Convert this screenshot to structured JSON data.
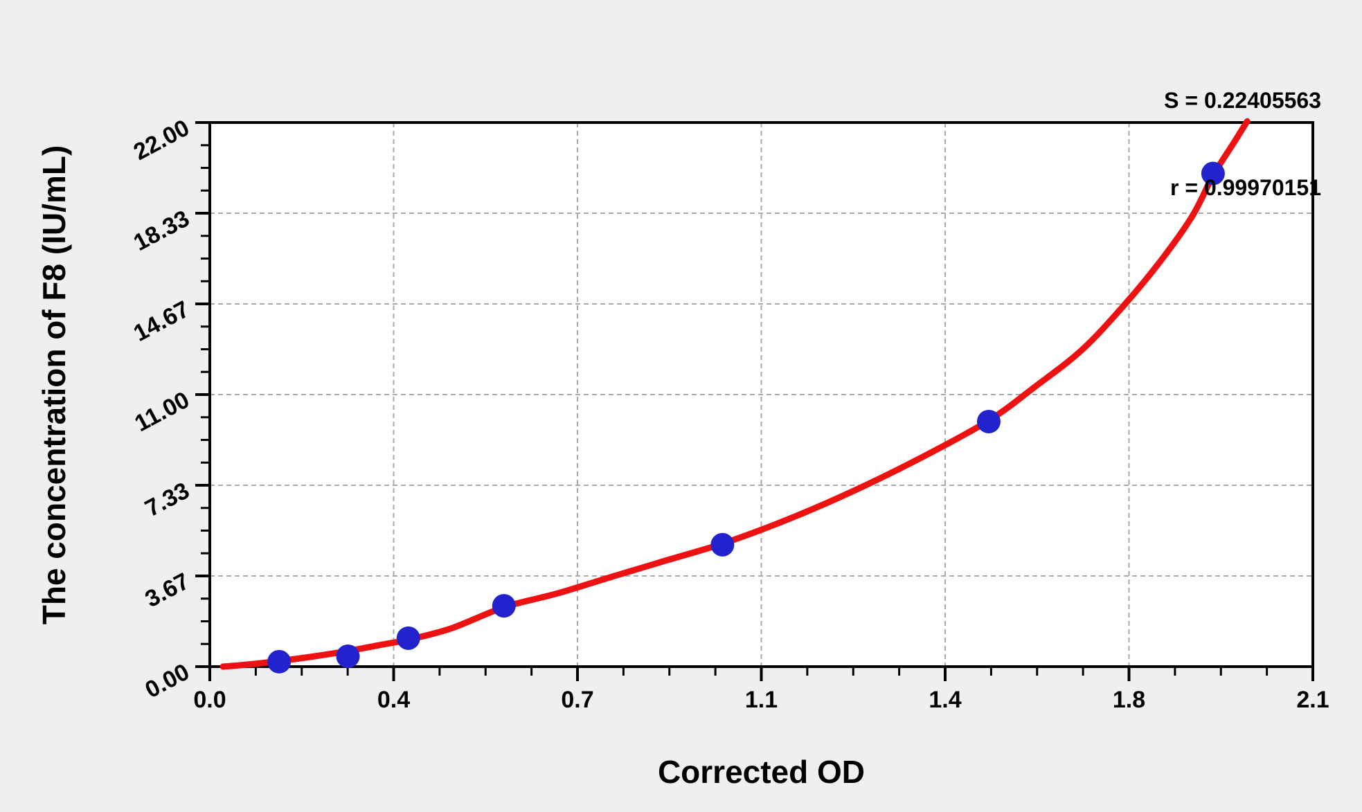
{
  "figure": {
    "background_color": "#efefef",
    "plot_background_color": "#ffffff",
    "frame_color": "#000000",
    "grid_color": "#a8a8a8"
  },
  "chart_data": {
    "type": "scatter",
    "title": "",
    "xlabel": "Corrected OD",
    "ylabel": "The concentration of F8 (IU/mL)",
    "xlim": [
      0,
      2.1
    ],
    "ylim": [
      0,
      22
    ],
    "x_major_ticks": [
      0,
      0.35,
      0.7,
      1.05,
      1.4,
      1.75,
      2.1
    ],
    "x_tick_labels": [
      "0.0",
      "0.4",
      "0.7",
      "1.1",
      "1.4",
      "1.8",
      "2.1"
    ],
    "x_minor_divisions": 4,
    "y_major_ticks": [
      0,
      3.667,
      7.333,
      11,
      14.667,
      18.333,
      22
    ],
    "y_tick_labels": [
      "0.00",
      "3.67",
      "7.33",
      "11.00",
      "14.67",
      "18.33",
      "22.00"
    ],
    "y_minor_divisions": 4,
    "grid": "dashed, interior major ticks only",
    "legend": "none",
    "annotations": [
      "S = 0.22405563",
      "r = 0.99970151"
    ],
    "series": [
      {
        "name": "standard-points",
        "type": "scatter",
        "color": "#2323cd",
        "marker_radius": 17,
        "points": [
          [
            0.132,
            0.2
          ],
          [
            0.263,
            0.42
          ],
          [
            0.378,
            1.15
          ],
          [
            0.56,
            2.46
          ],
          [
            0.976,
            4.93
          ],
          [
            1.483,
            9.91
          ],
          [
            1.91,
            19.94
          ]
        ]
      },
      {
        "name": "fitted-curve",
        "type": "line",
        "color": "#ee1111",
        "line_width": 9,
        "points": [
          [
            0.025,
            0.0
          ],
          [
            0.07,
            0.08
          ],
          [
            0.13,
            0.22
          ],
          [
            0.2,
            0.42
          ],
          [
            0.26,
            0.62
          ],
          [
            0.32,
            0.86
          ],
          [
            0.38,
            1.1
          ],
          [
            0.46,
            1.55
          ],
          [
            0.56,
            2.4
          ],
          [
            0.66,
            2.95
          ],
          [
            0.76,
            3.6
          ],
          [
            0.87,
            4.3
          ],
          [
            0.98,
            5.0
          ],
          [
            1.1,
            5.95
          ],
          [
            1.22,
            7.05
          ],
          [
            1.35,
            8.4
          ],
          [
            1.483,
            9.95
          ],
          [
            1.57,
            11.3
          ],
          [
            1.66,
            12.8
          ],
          [
            1.74,
            14.6
          ],
          [
            1.81,
            16.4
          ],
          [
            1.87,
            18.2
          ],
          [
            1.91,
            19.85
          ],
          [
            1.95,
            21.2
          ],
          [
            1.975,
            22.05
          ]
        ]
      }
    ]
  }
}
